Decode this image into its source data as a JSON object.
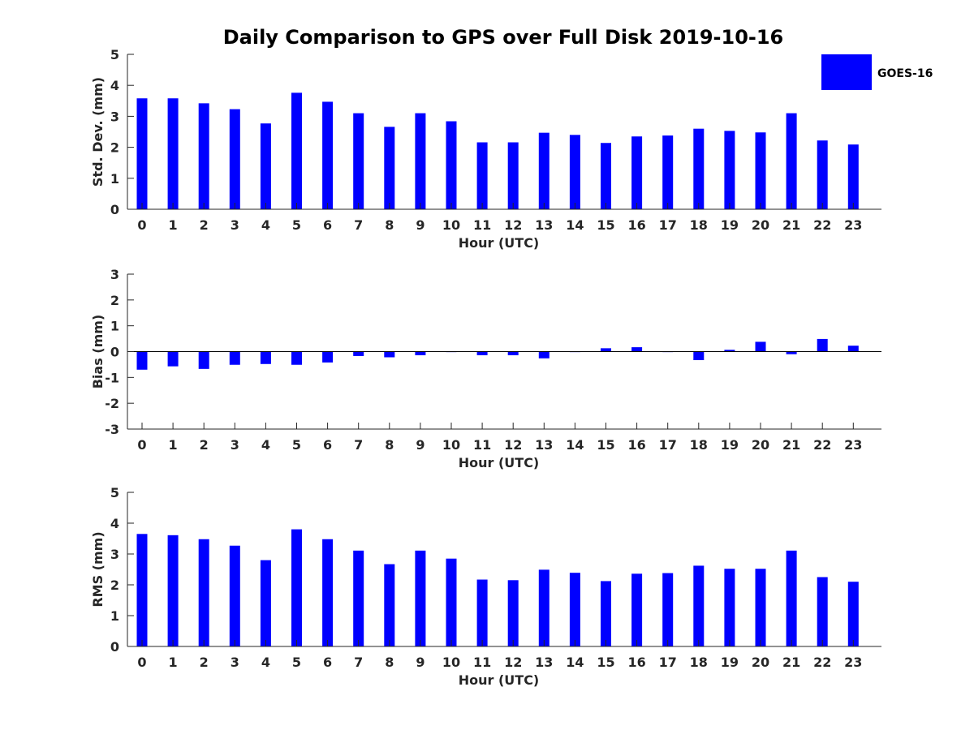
{
  "figure_title": "Daily Comparison to GPS over Full Disk 2019-10-16",
  "colors": {
    "bar": "#0000ff",
    "axis": "#262626"
  },
  "legend": {
    "label": "GOES-16",
    "placement": "top-right"
  },
  "chart_data": [
    {
      "id": "std",
      "type": "bar",
      "title": "Daily Comparison to GPS over Full Disk 2019-10-16",
      "xlabel": "Hour (UTC)",
      "ylabel": "Std. Dev. (mm)",
      "ylim": [
        0,
        5
      ],
      "yticks": [
        "0",
        "1",
        "2",
        "3",
        "4",
        "5"
      ],
      "categories": [
        "0",
        "1",
        "2",
        "3",
        "4",
        "5",
        "6",
        "7",
        "8",
        "9",
        "10",
        "11",
        "12",
        "13",
        "14",
        "15",
        "16",
        "17",
        "18",
        "19",
        "20",
        "21",
        "22",
        "23"
      ],
      "series": [
        {
          "name": "GOES-16",
          "values": [
            3.58,
            3.58,
            3.42,
            3.23,
            2.77,
            3.76,
            3.47,
            3.1,
            2.66,
            3.1,
            2.84,
            2.16,
            2.16,
            2.47,
            2.4,
            2.14,
            2.35,
            2.38,
            2.6,
            2.53,
            2.48,
            3.1,
            2.22,
            2.09
          ]
        }
      ]
    },
    {
      "id": "bias",
      "type": "bar",
      "xlabel": "Hour (UTC)",
      "ylabel": "Bias (mm)",
      "ylim": [
        -3,
        3
      ],
      "yticks": [
        "-3",
        "-2",
        "-1",
        "0",
        "1",
        "2",
        "3"
      ],
      "categories": [
        "0",
        "1",
        "2",
        "3",
        "4",
        "5",
        "6",
        "7",
        "8",
        "9",
        "10",
        "11",
        "12",
        "13",
        "14",
        "15",
        "16",
        "17",
        "18",
        "19",
        "20",
        "21",
        "22",
        "23"
      ],
      "series": [
        {
          "name": "GOES-16",
          "values": [
            -0.7,
            -0.57,
            -0.67,
            -0.51,
            -0.48,
            -0.51,
            -0.42,
            -0.17,
            -0.22,
            -0.14,
            -0.02,
            -0.14,
            -0.14,
            -0.26,
            -0.02,
            0.13,
            0.17,
            -0.02,
            -0.33,
            0.07,
            0.38,
            -0.1,
            0.49,
            0.23
          ]
        }
      ]
    },
    {
      "id": "rms",
      "type": "bar",
      "xlabel": "Hour (UTC)",
      "ylabel": "RMS (mm)",
      "ylim": [
        0,
        5
      ],
      "yticks": [
        "0",
        "1",
        "2",
        "3",
        "4",
        "5"
      ],
      "categories": [
        "0",
        "1",
        "2",
        "3",
        "4",
        "5",
        "6",
        "7",
        "8",
        "9",
        "10",
        "11",
        "12",
        "13",
        "14",
        "15",
        "16",
        "17",
        "18",
        "19",
        "20",
        "21",
        "22",
        "23"
      ],
      "series": [
        {
          "name": "GOES-16",
          "values": [
            3.65,
            3.61,
            3.48,
            3.27,
            2.8,
            3.8,
            3.48,
            3.11,
            2.67,
            3.11,
            2.85,
            2.17,
            2.15,
            2.49,
            2.39,
            2.12,
            2.36,
            2.38,
            2.62,
            2.52,
            2.52,
            3.11,
            2.25,
            2.1
          ]
        }
      ]
    }
  ]
}
